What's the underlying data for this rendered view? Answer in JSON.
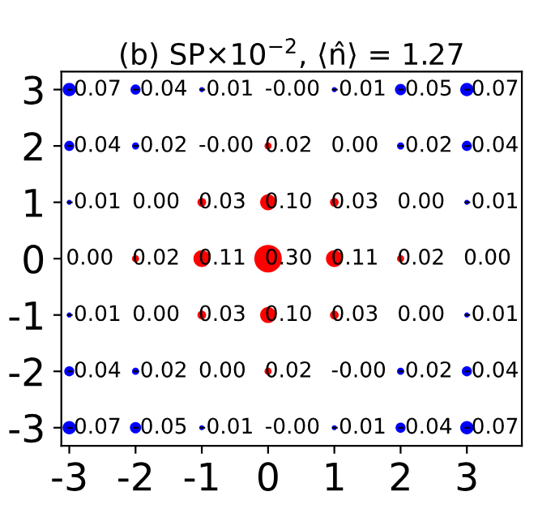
{
  "chart_data": {
    "type": "heatmap",
    "title": "(b) SP×10$^{−2}$, ⟨n̂⟩ = 1.27",
    "categories": [
      "-3",
      "-2",
      "-1",
      "0",
      "1",
      "2",
      "3"
    ],
    "y_categories": [
      "3",
      "2",
      "1",
      "0",
      "-1",
      "-2",
      "-3"
    ],
    "data_labels": true,
    "cells": [
      [
        -0.07,
        -0.04,
        -0.01,
        -0.0,
        -0.01,
        -0.05,
        -0.07
      ],
      [
        -0.04,
        -0.02,
        -0.0,
        0.02,
        0.0,
        -0.02,
        -0.04
      ],
      [
        -0.01,
        0.0,
        0.03,
        0.1,
        0.03,
        0.0,
        -0.01
      ],
      [
        0.0,
        0.02,
        0.11,
        0.3,
        0.11,
        0.02,
        0.0
      ],
      [
        -0.01,
        0.0,
        0.03,
        0.1,
        0.03,
        0.0,
        -0.01
      ],
      [
        -0.04,
        -0.02,
        0.0,
        0.02,
        -0.0,
        -0.02,
        -0.04
      ],
      [
        -0.07,
        -0.05,
        -0.01,
        -0.0,
        -0.01,
        -0.04,
        -0.07
      ]
    ],
    "cell_labels": [
      [
        "-0.07",
        "-0.04",
        "-0.01",
        "-0.00",
        "-0.01",
        "-0.05",
        "-0.07"
      ],
      [
        "-0.04",
        "-0.02",
        "-0.00",
        "0.02",
        "0.00",
        "-0.02",
        "-0.04"
      ],
      [
        "-0.01",
        "0.00",
        "0.03",
        "0.10",
        "0.03",
        "0.00",
        "-0.01"
      ],
      [
        "0.00",
        "0.02",
        "0.11",
        "0.30",
        "0.11",
        "0.02",
        "0.00"
      ],
      [
        "-0.01",
        "0.00",
        "0.03",
        "0.10",
        "0.03",
        "0.00",
        "-0.01"
      ],
      [
        "-0.04",
        "-0.02",
        "0.00",
        "0.02",
        "-0.00",
        "-0.02",
        "-0.04"
      ],
      [
        "-0.07",
        "-0.05",
        "-0.01",
        "-0.00",
        "-0.01",
        "-0.04",
        "-0.07"
      ]
    ]
  }
}
